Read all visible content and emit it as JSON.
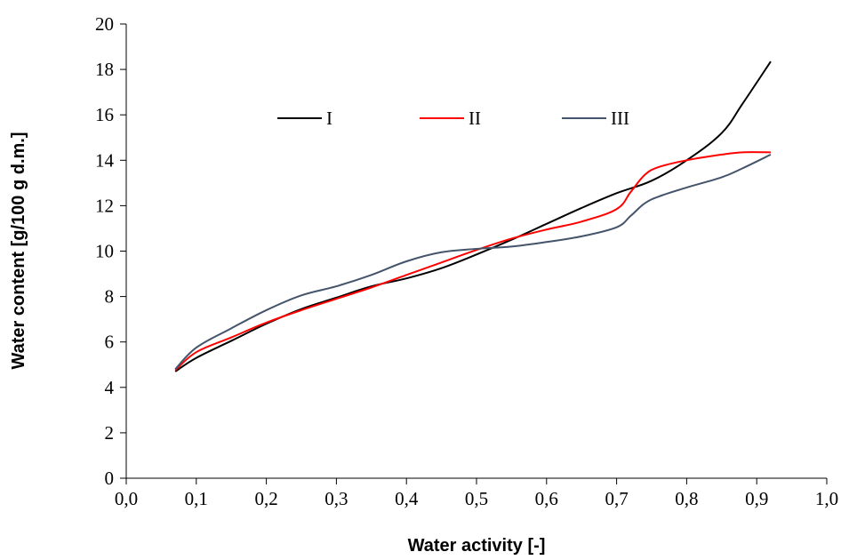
{
  "chart_data": {
    "type": "line",
    "xlabel": "Water activity [-]",
    "ylabel": "Water content [g/100 g d.m.]",
    "xlim": [
      0,
      1
    ],
    "ylim": [
      0,
      20
    ],
    "x_ticks": [
      "0,0",
      "0,1",
      "0,2",
      "0,3",
      "0,4",
      "0,5",
      "0,6",
      "0,7",
      "0,8",
      "0,9",
      "1,0"
    ],
    "y_ticks": [
      "0",
      "2",
      "4",
      "6",
      "8",
      "10",
      "12",
      "14",
      "16",
      "18",
      "20"
    ],
    "grid": false,
    "legend": "top-center",
    "series": [
      {
        "name": "I",
        "color": "#000000",
        "x": [
          0.07,
          0.1,
          0.15,
          0.2,
          0.25,
          0.3,
          0.35,
          0.4,
          0.45,
          0.5,
          0.55,
          0.6,
          0.65,
          0.7,
          0.75,
          0.8,
          0.85,
          0.88,
          0.92
        ],
        "y": [
          4.7,
          5.3,
          6.05,
          6.8,
          7.45,
          7.95,
          8.45,
          8.8,
          9.25,
          9.85,
          10.5,
          11.2,
          11.9,
          12.55,
          13.1,
          14.0,
          15.2,
          16.5,
          18.35
        ]
      },
      {
        "name": "II",
        "color": "#ff0000",
        "x": [
          0.07,
          0.1,
          0.15,
          0.2,
          0.25,
          0.3,
          0.35,
          0.4,
          0.45,
          0.5,
          0.55,
          0.6,
          0.65,
          0.7,
          0.72,
          0.74,
          0.76,
          0.8,
          0.85,
          0.88,
          0.92
        ],
        "y": [
          4.75,
          5.55,
          6.2,
          6.85,
          7.4,
          7.9,
          8.4,
          8.95,
          9.5,
          10.05,
          10.55,
          10.95,
          11.3,
          11.85,
          12.6,
          13.35,
          13.7,
          14.0,
          14.25,
          14.35,
          14.35
        ]
      },
      {
        "name": "III",
        "color": "#44546a",
        "x": [
          0.07,
          0.1,
          0.15,
          0.2,
          0.25,
          0.3,
          0.35,
          0.4,
          0.45,
          0.5,
          0.55,
          0.6,
          0.65,
          0.7,
          0.72,
          0.74,
          0.76,
          0.8,
          0.85,
          0.88,
          0.92
        ],
        "y": [
          4.8,
          5.75,
          6.6,
          7.4,
          8.05,
          8.45,
          8.95,
          9.55,
          9.95,
          10.1,
          10.2,
          10.4,
          10.65,
          11.05,
          11.55,
          12.1,
          12.4,
          12.8,
          13.25,
          13.65,
          14.25
        ]
      }
    ]
  }
}
